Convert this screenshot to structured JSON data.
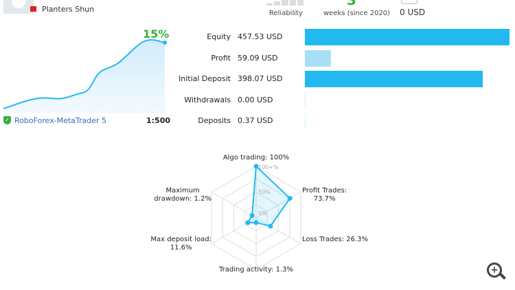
{
  "profile": {
    "name": "Planters Shun"
  },
  "stats": {
    "reliability_label": "Reliability",
    "weeks_value": "3",
    "weeks_label": "weeks (since 2020)",
    "subscribers_value": "0 USD"
  },
  "growth": {
    "percent": "15%",
    "broker": "RoboForex-MetaTrader 5",
    "leverage": "1:500"
  },
  "finance": {
    "items": [
      {
        "label": "Equity",
        "value": "457.53 USD",
        "amount": 457.53,
        "color": "#22b9f0"
      },
      {
        "label": "Profit",
        "value": "59.09 USD",
        "amount": 59.09,
        "color": "#a8def6"
      },
      {
        "label": "Initial Deposit",
        "value": "398.07 USD",
        "amount": 398.07,
        "color": "#22b9f0"
      },
      {
        "label": "Withdrawals",
        "value": "0.00 USD",
        "amount": 0,
        "color": "#a8def6"
      },
      {
        "label": "Deposits",
        "value": "0.37 USD",
        "amount": 0.37,
        "color": "#a8def6"
      }
    ]
  },
  "radar": {
    "ticks": [
      "100+%",
      "50%",
      "0%"
    ],
    "axes": [
      {
        "label": "Algo trading: 100%",
        "value": 100
      },
      {
        "label": "Profit Trades: 73.7%",
        "value": 73.7
      },
      {
        "label": "Loss Trades: 26.3%",
        "value": 26.3
      },
      {
        "label": "Trading activity: 1.3%",
        "value": 1.3
      },
      {
        "label": "Max deposit load: 11.6%",
        "value": 11.6
      },
      {
        "label": "Maximum drawdown: 1.2%",
        "value": 1.2
      }
    ]
  },
  "colors": {
    "accent": "#22b9f0",
    "green": "#3bae3b"
  }
}
